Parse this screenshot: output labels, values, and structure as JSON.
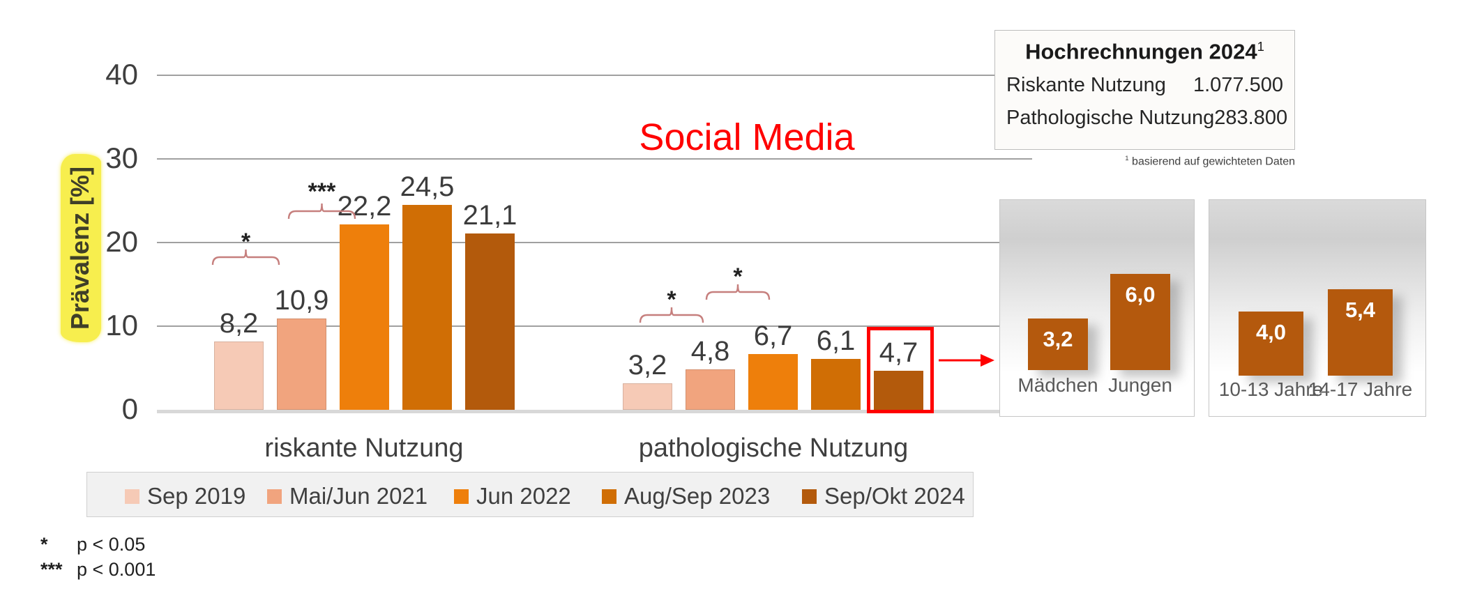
{
  "chart_data": [
    {
      "type": "bar",
      "title": "Social Media",
      "title_color": "#ff0000",
      "ylabel": "Prävalenz [%]",
      "ylabel_highlight_color": "#f7ee4e",
      "ylim": [
        0,
        40
      ],
      "yticks": [
        0,
        10,
        20,
        30,
        40
      ],
      "grid": true,
      "legend_position": "bottom",
      "categories": [
        "riskante Nutzung",
        "pathologische Nutzung"
      ],
      "series": [
        {
          "name": "Sep 2019",
          "color": "#f6cab6",
          "values": [
            8.2,
            3.2
          ],
          "value_labels": [
            "8,2",
            "3,2"
          ]
        },
        {
          "name": "Mai/Jun 2021",
          "color": "#f1a47e",
          "values": [
            10.9,
            4.8
          ],
          "value_labels": [
            "10,9",
            "4,8"
          ]
        },
        {
          "name": "Jun 2022",
          "color": "#ee7f0b",
          "values": [
            22.2,
            6.7
          ],
          "value_labels": [
            "22,2",
            "6,7"
          ]
        },
        {
          "name": "Aug/Sep 2023",
          "color": "#d06e05",
          "values": [
            24.5,
            6.1
          ],
          "value_labels": [
            "24,5",
            "6,1"
          ]
        },
        {
          "name": "Sep/Okt 2024",
          "color": "#b35a0c",
          "values": [
            21.1,
            4.7
          ],
          "value_labels": [
            "21,1",
            "4,7"
          ]
        }
      ],
      "significance": [
        {
          "category": "riskante Nutzung",
          "between": [
            "Sep 2019",
            "Mai/Jun 2021"
          ],
          "label": "*"
        },
        {
          "category": "riskante Nutzung",
          "between": [
            "Mai/Jun 2021",
            "Jun 2022"
          ],
          "label": "***"
        },
        {
          "category": "pathologische Nutzung",
          "between": [
            "Sep 2019",
            "Mai/Jun 2021"
          ],
          "label": "*"
        },
        {
          "category": "pathologische Nutzung",
          "between": [
            "Mai/Jun 2021",
            "Jun 2022"
          ],
          "label": "*"
        }
      ],
      "highlight": {
        "category": "pathologische Nutzung",
        "series": "Sep/Okt 2024",
        "value_label": "4,7",
        "color": "#ff0000"
      }
    },
    {
      "type": "bar",
      "categories": [
        "Mädchen",
        "Jungen"
      ],
      "values": [
        3.2,
        6.0
      ],
      "value_labels": [
        "3,2",
        "6,0"
      ],
      "bar_color": "#b4590d"
    },
    {
      "type": "bar",
      "categories": [
        "10-13 Jahre",
        "14-17 Jahre"
      ],
      "values": [
        4.0,
        5.4
      ],
      "value_labels": [
        "4,0",
        "5,4"
      ],
      "bar_color": "#b4590d"
    }
  ],
  "stats_box": {
    "title": "Hochrechnungen 2024",
    "title_sup": "1",
    "rows": [
      {
        "label": "Riskante Nutzung",
        "value": "1.077.500"
      },
      {
        "label": "Pathologische Nutzung",
        "value": "283.800"
      }
    ],
    "footnote_sup": "1",
    "footnote": " basierend auf gewichteten Daten"
  },
  "significance_legend": [
    {
      "symbol": "*",
      "text": "p < 0.05"
    },
    {
      "symbol": "***",
      "text": "p < 0.001"
    }
  ],
  "colors": {
    "accent_red": "#ff0000",
    "bracket": "#c67f7d",
    "gridline": "#a0a0a0",
    "baseline": "#d8d8d8"
  }
}
